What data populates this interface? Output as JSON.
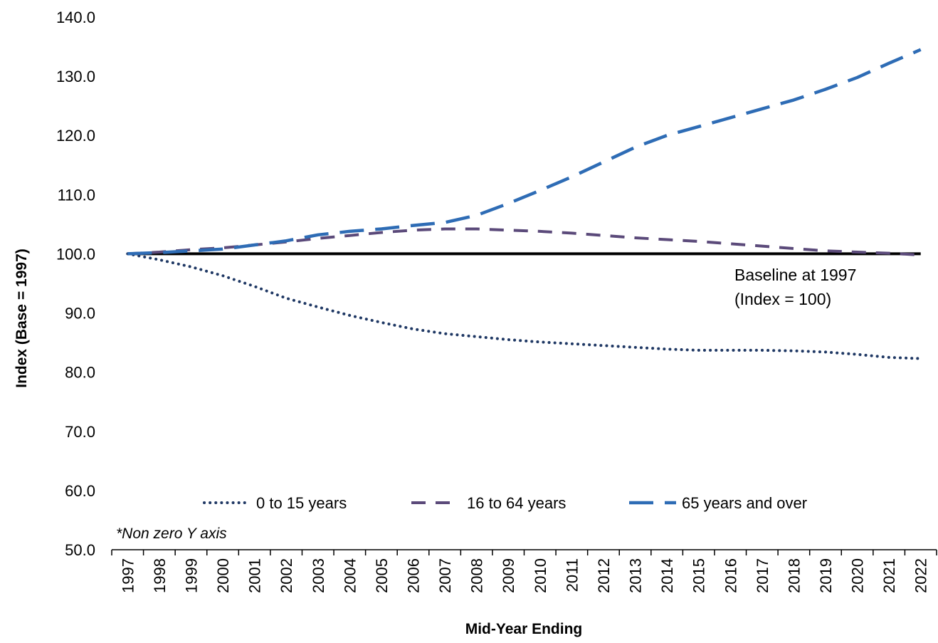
{
  "chart_data": {
    "type": "line",
    "xlabel": "Mid-Year Ending",
    "ylabel": "Index (Base = 1997)",
    "ylim": [
      50,
      140
    ],
    "y_ticks": [
      "50.0",
      "60.0",
      "70.0",
      "80.0",
      "90.0",
      "100.0",
      "110.0",
      "120.0",
      "130.0",
      "140.0"
    ],
    "y_tick_values": [
      50,
      60,
      70,
      80,
      90,
      100,
      110,
      120,
      130,
      140
    ],
    "categories": [
      "1997",
      "1998",
      "1999",
      "2000",
      "2001",
      "2002",
      "2003",
      "2004",
      "2005",
      "2006",
      "2007",
      "2008",
      "2009",
      "2010",
      "2011",
      "2012",
      "2013",
      "2014",
      "2015",
      "2016",
      "2017",
      "2018",
      "2019",
      "2020",
      "2021",
      "2022"
    ],
    "series": [
      {
        "name": "0 to 15 years",
        "style": "dotted",
        "color": "#1F3864",
        "values": [
          100.0,
          99.0,
          97.8,
          96.3,
          94.5,
          92.5,
          91.0,
          89.6,
          88.4,
          87.3,
          86.5,
          86.0,
          85.5,
          85.1,
          84.8,
          84.5,
          84.2,
          83.9,
          83.7,
          83.7,
          83.7,
          83.6,
          83.4,
          83.0,
          82.5,
          82.3
        ]
      },
      {
        "name": "16 to 64 years",
        "style": "dashed",
        "color": "#5B4A7A",
        "values": [
          100.0,
          100.3,
          100.7,
          101.0,
          101.5,
          102.0,
          102.6,
          103.1,
          103.6,
          104.0,
          104.2,
          104.2,
          104.0,
          103.8,
          103.5,
          103.1,
          102.7,
          102.4,
          102.1,
          101.7,
          101.3,
          100.9,
          100.5,
          100.3,
          100.1,
          99.8
        ]
      },
      {
        "name": "65 years and over",
        "style": "long-dash",
        "color": "#2E6CB5",
        "values": [
          100.0,
          100.2,
          100.5,
          100.8,
          101.5,
          102.2,
          103.2,
          103.8,
          104.2,
          104.8,
          105.3,
          106.5,
          108.5,
          110.7,
          113.0,
          115.5,
          118.0,
          120.0,
          121.5,
          123.0,
          124.5,
          126.0,
          127.8,
          129.8,
          132.2,
          134.5
        ]
      },
      {
        "name": "Baseline",
        "style": "solid",
        "color": "#000000",
        "values": [
          100,
          100,
          100,
          100,
          100,
          100,
          100,
          100,
          100,
          100,
          100,
          100,
          100,
          100,
          100,
          100,
          100,
          100,
          100,
          100,
          100,
          100,
          100,
          100,
          100,
          100
        ]
      }
    ],
    "legend": {
      "placement": "bottom-inside",
      "items": [
        "0 to 15 years",
        "16 to 64 years",
        "65 years and over"
      ]
    },
    "annotation": {
      "line1": "Baseline at 1997",
      "line2": "(Index = 100)"
    },
    "note": "*Non zero Y axis",
    "grid": false
  }
}
